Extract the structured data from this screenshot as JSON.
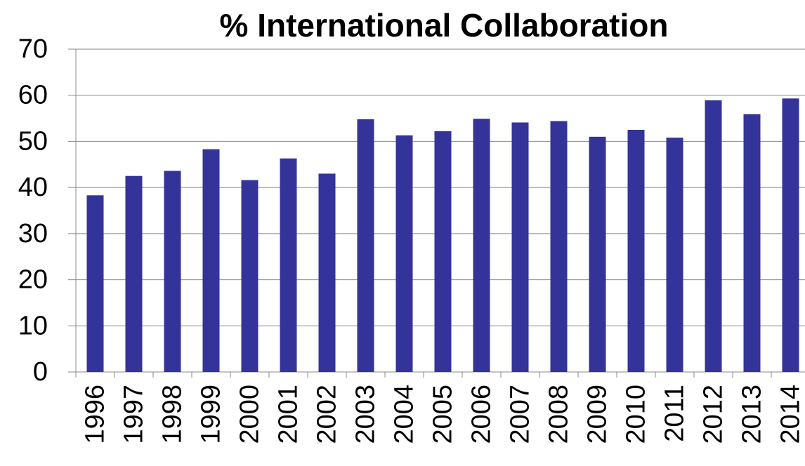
{
  "chart_data": {
    "type": "bar",
    "title": "% International Collaboration",
    "categories": [
      "1996",
      "1997",
      "1998",
      "1999",
      "2000",
      "2001",
      "2002",
      "2003",
      "2004",
      "2005",
      "2006",
      "2007",
      "2008",
      "2009",
      "2010",
      "2011",
      "2012",
      "2013",
      "2014"
    ],
    "values": [
      38.3,
      42.5,
      43.6,
      48.3,
      41.6,
      46.3,
      43.0,
      54.8,
      51.3,
      52.2,
      54.9,
      54.1,
      54.4,
      51.0,
      52.5,
      50.8,
      58.9,
      55.9,
      59.3
    ],
    "color": "#333399",
    "ylim": [
      0,
      70
    ],
    "yticks": [
      0,
      10,
      20,
      30,
      40,
      50,
      60,
      70
    ],
    "grid": true
  }
}
